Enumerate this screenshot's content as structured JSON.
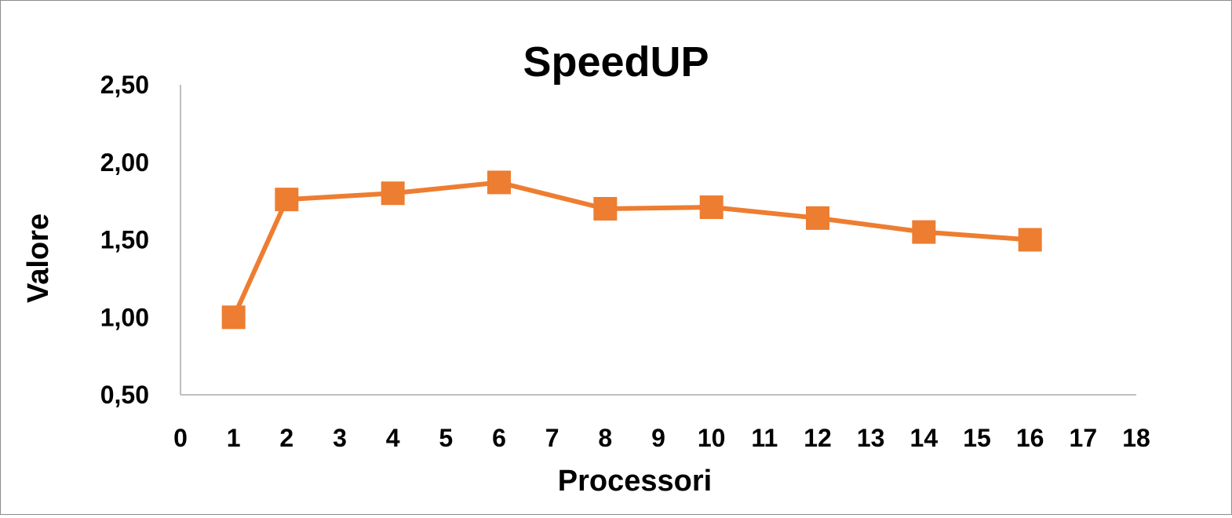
{
  "chart_data": {
    "type": "line",
    "title": "SpeedUP",
    "xlabel": "Processori",
    "ylabel": "Valore",
    "xlim": [
      0,
      18
    ],
    "ylim": [
      0.5,
      2.5
    ],
    "x_ticks": [
      "0",
      "1",
      "2",
      "3",
      "4",
      "5",
      "6",
      "7",
      "8",
      "9",
      "10",
      "11",
      "12",
      "13",
      "14",
      "15",
      "16",
      "17",
      "18"
    ],
    "y_ticks": [
      "0,50",
      "1,00",
      "1,50",
      "2,00",
      "2,50"
    ],
    "grid": false,
    "legend": "none",
    "series": [
      {
        "color": "#ED7D31",
        "marker": "square",
        "x": [
          1,
          2,
          4,
          6,
          8,
          10,
          12,
          14,
          16
        ],
        "y": [
          1.0,
          1.76,
          1.8,
          1.87,
          1.7,
          1.71,
          1.64,
          1.55,
          1.5
        ]
      }
    ]
  }
}
